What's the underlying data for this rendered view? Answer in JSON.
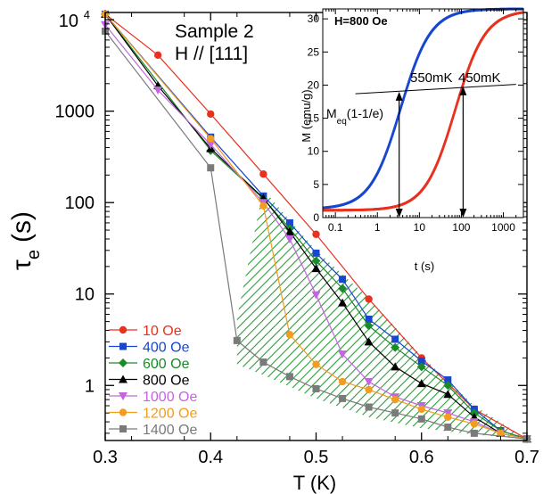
{
  "chart_data": [
    {
      "type": "line",
      "xlabel": "T (K)",
      "ylabel": "τe (s)",
      "ylabel_main": "τ",
      "ylabel_sub": "e",
      "ylabel_unit": "(s)",
      "yscale": "log",
      "xlim": [
        0.3,
        0.7
      ],
      "ylim": [
        0.25,
        12000
      ],
      "xticks": [
        "0.3",
        "0.4",
        "0.5",
        "0.6",
        "0.7"
      ],
      "yticks": [
        "1",
        "10",
        "100",
        "1000",
        "10^4"
      ],
      "annotations": [
        "Sample 2",
        "H // [111]"
      ],
      "legend_position": "bottom-left",
      "series": [
        {
          "name": "10 Oe",
          "color": "#e8311f",
          "marker": "circle",
          "x": [
            0.3,
            0.35,
            0.4,
            0.45,
            0.5,
            0.55,
            0.6,
            0.65,
            0.7
          ],
          "y": [
            11500,
            4100,
            930,
            205,
            45,
            8.8,
            2.0,
            0.55,
            0.26
          ]
        },
        {
          "name": "400 Oe",
          "color": "#1747d1",
          "marker": "square",
          "x": [
            0.3,
            0.4,
            0.45,
            0.475,
            0.5,
            0.525,
            0.55,
            0.575,
            0.6,
            0.625,
            0.65,
            0.675,
            0.7
          ],
          "y": [
            11500,
            520,
            118,
            60,
            28,
            14.5,
            5.3,
            3.2,
            1.85,
            1.15,
            0.55,
            0.32,
            0.26
          ]
        },
        {
          "name": "600 Oe",
          "color": "#1a8a2a",
          "marker": "diamond",
          "x": [
            0.3,
            0.4,
            0.45,
            0.475,
            0.5,
            0.525,
            0.55,
            0.575,
            0.6,
            0.625,
            0.65,
            0.675,
            0.7
          ],
          "y": [
            11500,
            370,
            110,
            52,
            23,
            11.5,
            4.5,
            2.6,
            1.6,
            1.0,
            0.5,
            0.32,
            0.26
          ]
        },
        {
          "name": "800 Oe",
          "color": "#000000",
          "marker": "triangle-up",
          "x": [
            0.3,
            0.35,
            0.4,
            0.45,
            0.475,
            0.5,
            0.525,
            0.55,
            0.575,
            0.6,
            0.625,
            0.65,
            0.675,
            0.7
          ],
          "y": [
            11500,
            1900,
            390,
            112,
            48,
            19,
            8.0,
            3.0,
            1.6,
            1.05,
            0.8,
            0.45,
            0.3,
            0.26
          ]
        },
        {
          "name": "1000 Oe",
          "color": "#c266e0",
          "marker": "triangle-down",
          "x": [
            0.3,
            0.35,
            0.4,
            0.45,
            0.475,
            0.5,
            0.525,
            0.55,
            0.575,
            0.6,
            0.625,
            0.65,
            0.675,
            0.7
          ],
          "y": [
            8800,
            1700,
            430,
            100,
            40,
            9.8,
            2.2,
            1.1,
            0.75,
            0.6,
            0.5,
            0.4,
            0.3,
            0.26
          ]
        },
        {
          "name": "1200 Oe",
          "color": "#f29d1e",
          "marker": "circle",
          "x": [
            0.3,
            0.4,
            0.45,
            0.475,
            0.5,
            0.525,
            0.55,
            0.575,
            0.6,
            0.625,
            0.65,
            0.675,
            0.7
          ],
          "y": [
            11500,
            500,
            92,
            3.6,
            1.7,
            1.1,
            0.9,
            0.7,
            0.55,
            0.45,
            0.38,
            0.3,
            0.26
          ]
        },
        {
          "name": "1400 Oe",
          "color": "#7a7a7a",
          "marker": "square",
          "x": [
            0.3,
            0.4,
            0.425,
            0.45,
            0.475,
            0.5,
            0.525,
            0.55,
            0.575,
            0.6,
            0.625,
            0.65,
            0.7
          ],
          "y": [
            7500,
            240,
            3.1,
            1.8,
            1.25,
            0.92,
            0.72,
            0.58,
            0.5,
            0.43,
            0.35,
            0.3,
            0.26
          ]
        }
      ],
      "shaded_region": {
        "fill": "#2e9b3c",
        "pattern": "diagonal-hatch",
        "x": [
          0.425,
          0.45,
          0.475,
          0.5,
          0.55,
          0.6,
          0.65,
          0.7,
          0.65,
          0.6,
          0.55,
          0.5,
          0.45,
          0.425
        ],
        "y": [
          5.5,
          140,
          64,
          30,
          9,
          2.1,
          0.6,
          0.26,
          0.29,
          0.34,
          0.45,
          0.72,
          1.3,
          1.7
        ]
      }
    },
    {
      "type": "line",
      "xlabel": "t (s)",
      "ylabel": "M (emu/g)",
      "xscale": "log",
      "xlim": [
        0.05,
        3000
      ],
      "ylim": [
        0,
        31.5
      ],
      "xticks": [
        "0.1",
        "1",
        "10",
        "100",
        "1000"
      ],
      "yticks": [
        "0",
        "5",
        "10",
        "15",
        "20",
        "25",
        "30"
      ],
      "title": "H=800 Oe",
      "annotations": [
        "550mK",
        "450mK"
      ],
      "meq_label": {
        "main": "M",
        "sub": "eq",
        "rest": "(1-1/e)"
      },
      "reference_line": {
        "x": [
          0.3,
          2000
        ],
        "y": [
          18.7,
          20.1
        ]
      },
      "arrows": [
        {
          "x": 3.3,
          "y_top": 19.0,
          "y_bottom": 0
        },
        {
          "x": 110,
          "y_top": 19.8,
          "y_bottom": 0
        }
      ],
      "series": [
        {
          "name": "550mK",
          "color": "#1747d1",
          "model": "logistic",
          "center_log10": 0.55,
          "width": 0.36,
          "baseline": 1.3,
          "amplitude": 30.2
        },
        {
          "name": "450mK",
          "color": "#e8311f",
          "model": "logistic",
          "center_log10": 1.85,
          "width": 0.36,
          "baseline": 1.1,
          "amplitude": 30.2
        }
      ]
    }
  ]
}
